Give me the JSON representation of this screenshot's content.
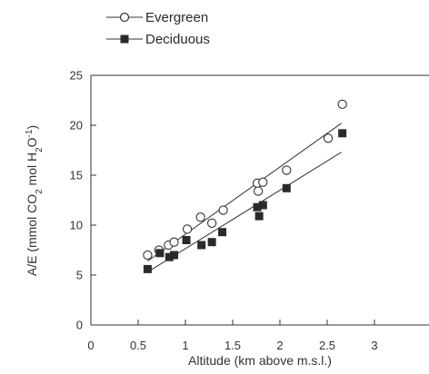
{
  "chart_data": {
    "type": "scatter",
    "title": "",
    "xlabel": "Altitude (km above m.s.l.)",
    "ylabel_parts": [
      "A/E (mmol CO",
      "2",
      " mol H",
      "2",
      "O",
      "-1",
      ")"
    ],
    "xlim": [
      0,
      3
    ],
    "ylim": [
      0,
      25
    ],
    "xticks": [
      0,
      0.5,
      1,
      1.5,
      2,
      2.5,
      3
    ],
    "xtick_labels": [
      "0",
      "0.5",
      "1",
      "1.5",
      "2",
      "2.5",
      "3"
    ],
    "yticks": [
      0,
      5,
      10,
      15,
      20,
      25
    ],
    "ytick_labels": [
      "0",
      "5",
      "10",
      "15",
      "20",
      "25"
    ],
    "grid": false,
    "legend_position": "top-left",
    "series": [
      {
        "name": "Evergreen",
        "marker": "open-circle",
        "color": "#333333",
        "points": [
          [
            0.6,
            7.0
          ],
          [
            0.72,
            7.5
          ],
          [
            0.82,
            8.0
          ],
          [
            0.88,
            8.3
          ],
          [
            1.02,
            9.6
          ],
          [
            1.16,
            10.8
          ],
          [
            1.28,
            10.2
          ],
          [
            1.4,
            11.5
          ],
          [
            1.76,
            14.2
          ],
          [
            1.77,
            13.4
          ],
          [
            1.82,
            14.3
          ],
          [
            2.07,
            15.5
          ],
          [
            2.51,
            18.7
          ],
          [
            2.66,
            22.1
          ]
        ],
        "fit_line": [
          [
            0.6,
            6.4
          ],
          [
            2.65,
            20.2
          ]
        ]
      },
      {
        "name": "Deciduous",
        "marker": "filled-square",
        "color": "#2a2a2a",
        "points": [
          [
            0.6,
            5.6
          ],
          [
            0.73,
            7.2
          ],
          [
            0.83,
            6.8
          ],
          [
            0.88,
            7.0
          ],
          [
            1.01,
            8.5
          ],
          [
            1.17,
            8.0
          ],
          [
            1.28,
            8.3
          ],
          [
            1.39,
            9.3
          ],
          [
            1.76,
            11.8
          ],
          [
            1.78,
            10.9
          ],
          [
            1.82,
            12.0
          ],
          [
            2.07,
            13.7
          ],
          [
            2.66,
            19.2
          ]
        ],
        "fit_line": [
          [
            0.6,
            5.3
          ],
          [
            2.65,
            17.3
          ]
        ]
      }
    ]
  }
}
